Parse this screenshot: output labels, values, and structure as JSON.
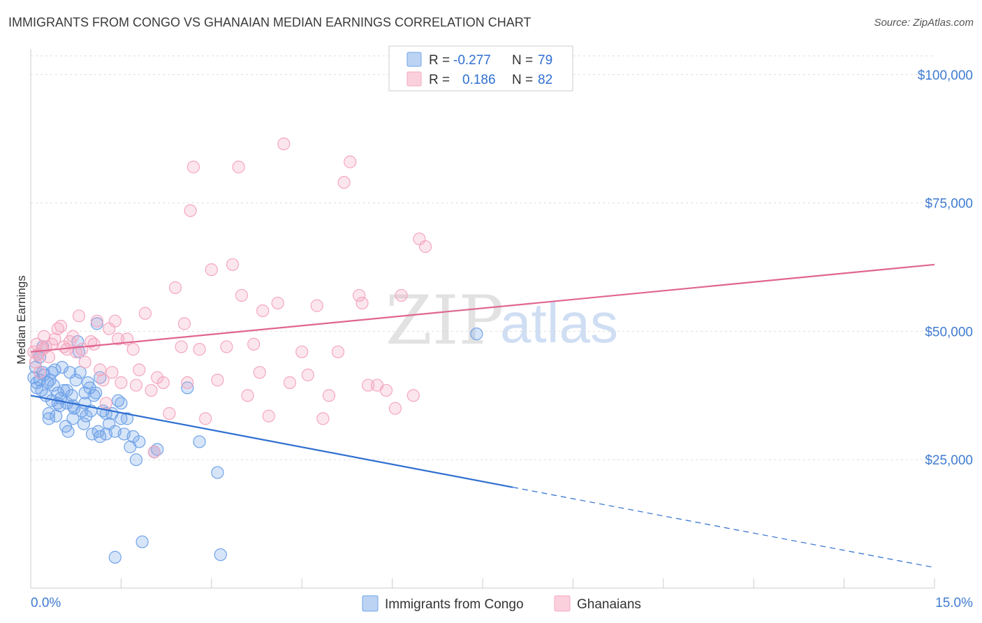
{
  "chart_data": {
    "type": "scatter",
    "title": "IMMIGRANTS FROM CONGO VS GHANAIAN MEDIAN EARNINGS CORRELATION CHART",
    "source": "Source: ZipAtlas.com",
    "xlabel": "",
    "ylabel": "Median Earnings",
    "xlim": [
      0,
      15
    ],
    "ylim": [
      0,
      105000
    ],
    "x_edge_labels": [
      "0.0%",
      "15.0%"
    ],
    "y_ticks": [
      {
        "value": 25000,
        "label": "$25,000"
      },
      {
        "value": 50000,
        "label": "$50,000"
      },
      {
        "value": 75000,
        "label": "$75,000"
      },
      {
        "value": 100000,
        "label": "$100,000"
      }
    ],
    "grid": true,
    "watermark": [
      "ZIP",
      "atlas"
    ],
    "legend_position": "top-center",
    "legend": [
      {
        "r_label": "R =",
        "r_value": "-0.277",
        "n_label": "N =",
        "n_value": "79"
      },
      {
        "r_label": "R =",
        "r_value": "0.186",
        "n_label": "N =",
        "n_value": "82"
      }
    ],
    "series": [
      {
        "name": "Immigrants from Congo",
        "color": "#6fa3e8",
        "line_color": "#2f6fd0",
        "trend": {
          "x0": 0,
          "y0": 37500,
          "x_solid_end": 8.0,
          "x1": 15,
          "y1": 4000
        },
        "points": [
          [
            0.05,
            41000
          ],
          [
            0.08,
            43000
          ],
          [
            0.1,
            39000
          ],
          [
            0.12,
            45500
          ],
          [
            0.15,
            40500
          ],
          [
            0.18,
            38500
          ],
          [
            0.2,
            42000
          ],
          [
            0.22,
            41500
          ],
          [
            0.25,
            37500
          ],
          [
            0.28,
            40000
          ],
          [
            0.3,
            34000
          ],
          [
            0.32,
            40500
          ],
          [
            0.35,
            36500
          ],
          [
            0.38,
            39500
          ],
          [
            0.4,
            42500
          ],
          [
            0.42,
            33500
          ],
          [
            0.45,
            38000
          ],
          [
            0.48,
            35500
          ],
          [
            0.5,
            37000
          ],
          [
            0.52,
            43000
          ],
          [
            0.55,
            38500
          ],
          [
            0.58,
            31500
          ],
          [
            0.6,
            36000
          ],
          [
            0.62,
            30500
          ],
          [
            0.65,
            42000
          ],
          [
            0.68,
            37500
          ],
          [
            0.7,
            33000
          ],
          [
            0.72,
            35000
          ],
          [
            0.75,
            40500
          ],
          [
            0.78,
            48000
          ],
          [
            0.8,
            46000
          ],
          [
            0.82,
            42000
          ],
          [
            0.85,
            34500
          ],
          [
            0.88,
            32000
          ],
          [
            0.9,
            36000
          ],
          [
            0.92,
            33500
          ],
          [
            0.95,
            40000
          ],
          [
            0.98,
            39000
          ],
          [
            1.0,
            34500
          ],
          [
            1.02,
            30000
          ],
          [
            1.05,
            37500
          ],
          [
            1.08,
            38000
          ],
          [
            1.1,
            51500
          ],
          [
            1.12,
            30500
          ],
          [
            1.15,
            29500
          ],
          [
            1.2,
            34500
          ],
          [
            1.25,
            30000
          ],
          [
            1.3,
            32000
          ],
          [
            1.35,
            34000
          ],
          [
            1.4,
            30500
          ],
          [
            1.45,
            36500
          ],
          [
            1.5,
            36000
          ],
          [
            1.55,
            30000
          ],
          [
            1.6,
            33000
          ],
          [
            1.65,
            27500
          ],
          [
            1.7,
            29500
          ],
          [
            1.75,
            25000
          ],
          [
            1.8,
            28500
          ],
          [
            1.85,
            9000
          ],
          [
            1.4,
            6000
          ],
          [
            2.05,
            26500
          ],
          [
            2.1,
            27000
          ],
          [
            2.6,
            39000
          ],
          [
            2.8,
            28500
          ],
          [
            3.1,
            22500
          ],
          [
            3.15,
            6500
          ],
          [
            7.4,
            49500
          ],
          [
            0.15,
            45000
          ],
          [
            0.1,
            40000
          ],
          [
            0.2,
            47000
          ],
          [
            0.35,
            42000
          ],
          [
            0.6,
            38500
          ],
          [
            0.9,
            38000
          ],
          [
            1.15,
            41000
          ],
          [
            0.45,
            36000
          ],
          [
            0.3,
            33000
          ],
          [
            1.25,
            34000
          ],
          [
            0.7,
            35500
          ],
          [
            1.5,
            33000
          ]
        ]
      },
      {
        "name": "Ghanaians",
        "color": "#f4a7bf",
        "line_color": "#e06590",
        "trend": {
          "x0": 0,
          "y0": 46000,
          "x_solid_end": 15,
          "x1": 15,
          "y1": 63000
        },
        "points": [
          [
            0.05,
            46000
          ],
          [
            0.08,
            44000
          ],
          [
            0.1,
            47500
          ],
          [
            0.12,
            45500
          ],
          [
            0.15,
            42000
          ],
          [
            0.2,
            46500
          ],
          [
            0.22,
            49000
          ],
          [
            0.25,
            47000
          ],
          [
            0.3,
            45000
          ],
          [
            0.35,
            47500
          ],
          [
            0.4,
            48500
          ],
          [
            0.45,
            50500
          ],
          [
            0.5,
            51000
          ],
          [
            0.55,
            47000
          ],
          [
            0.6,
            46500
          ],
          [
            0.65,
            48000
          ],
          [
            0.7,
            49000
          ],
          [
            0.75,
            46000
          ],
          [
            0.8,
            53000
          ],
          [
            0.85,
            46500
          ],
          [
            0.9,
            44000
          ],
          [
            1.0,
            48000
          ],
          [
            1.05,
            47500
          ],
          [
            1.1,
            52000
          ],
          [
            1.15,
            42500
          ],
          [
            1.2,
            40500
          ],
          [
            1.25,
            36000
          ],
          [
            1.3,
            50500
          ],
          [
            1.35,
            42000
          ],
          [
            1.4,
            52000
          ],
          [
            1.45,
            48500
          ],
          [
            1.5,
            40000
          ],
          [
            1.6,
            48500
          ],
          [
            1.7,
            46500
          ],
          [
            1.75,
            39500
          ],
          [
            1.8,
            42500
          ],
          [
            1.9,
            53500
          ],
          [
            2.0,
            38500
          ],
          [
            2.05,
            26500
          ],
          [
            2.1,
            41000
          ],
          [
            2.2,
            40000
          ],
          [
            2.3,
            34000
          ],
          [
            2.4,
            58500
          ],
          [
            2.5,
            47000
          ],
          [
            2.55,
            51500
          ],
          [
            2.6,
            40000
          ],
          [
            2.65,
            73500
          ],
          [
            2.7,
            82000
          ],
          [
            2.8,
            46500
          ],
          [
            2.9,
            33000
          ],
          [
            3.0,
            62000
          ],
          [
            3.1,
            40500
          ],
          [
            3.25,
            47000
          ],
          [
            3.35,
            63000
          ],
          [
            3.45,
            82000
          ],
          [
            3.5,
            57000
          ],
          [
            3.6,
            37500
          ],
          [
            3.7,
            47500
          ],
          [
            3.8,
            42000
          ],
          [
            3.85,
            54000
          ],
          [
            3.95,
            33500
          ],
          [
            4.1,
            55500
          ],
          [
            4.2,
            86500
          ],
          [
            4.3,
            40000
          ],
          [
            4.5,
            46000
          ],
          [
            4.6,
            41500
          ],
          [
            4.75,
            55000
          ],
          [
            4.85,
            33000
          ],
          [
            4.95,
            37500
          ],
          [
            5.1,
            46000
          ],
          [
            5.2,
            79000
          ],
          [
            5.3,
            83000
          ],
          [
            5.45,
            57000
          ],
          [
            5.5,
            55500
          ],
          [
            5.6,
            39500
          ],
          [
            5.75,
            39500
          ],
          [
            5.9,
            38500
          ],
          [
            6.05,
            35000
          ],
          [
            6.15,
            57000
          ],
          [
            6.35,
            37500
          ],
          [
            6.45,
            68000
          ],
          [
            6.55,
            66500
          ]
        ]
      }
    ]
  }
}
